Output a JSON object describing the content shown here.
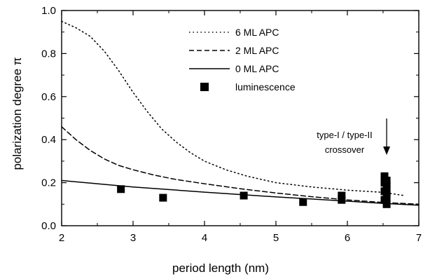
{
  "chart_data": {
    "type": "line",
    "title": "",
    "xlabel": "period length (nm)",
    "ylabel": "polarization degree π",
    "xlim": [
      2,
      7
    ],
    "ylim": [
      0.0,
      1.0
    ],
    "xticks": [
      "2",
      "3",
      "4",
      "5",
      "6",
      "7"
    ],
    "yticks": [
      "0.0",
      "0.2",
      "0.4",
      "0.6",
      "0.8",
      "1.0"
    ],
    "grid": false,
    "legend_position": "top-center",
    "series": [
      {
        "name": "6 ML APC",
        "style": "dotted",
        "x": [
          2.0,
          2.2,
          2.4,
          2.6,
          2.8,
          3.0,
          3.2,
          3.4,
          3.6,
          3.8,
          4.0,
          4.3,
          4.6,
          5.0,
          5.5,
          6.0,
          6.5,
          6.8
        ],
        "y": [
          0.95,
          0.92,
          0.88,
          0.81,
          0.72,
          0.62,
          0.53,
          0.45,
          0.39,
          0.34,
          0.3,
          0.26,
          0.23,
          0.2,
          0.18,
          0.165,
          0.155,
          0.14
        ]
      },
      {
        "name": "2 ML APC",
        "style": "dashed",
        "x": [
          2.0,
          2.2,
          2.4,
          2.6,
          2.8,
          3.0,
          3.3,
          3.6,
          4.0,
          4.5,
          5.0,
          5.5,
          6.0,
          6.5,
          7.0
        ],
        "y": [
          0.46,
          0.4,
          0.35,
          0.31,
          0.28,
          0.26,
          0.235,
          0.215,
          0.195,
          0.172,
          0.152,
          0.135,
          0.12,
          0.108,
          0.1
        ]
      },
      {
        "name": "0 ML APC",
        "style": "solid",
        "x": [
          2.0,
          2.5,
          3.0,
          3.5,
          4.0,
          4.5,
          5.0,
          5.5,
          6.0,
          6.5,
          7.0
        ],
        "y": [
          0.21,
          0.195,
          0.18,
          0.168,
          0.156,
          0.145,
          0.134,
          0.124,
          0.114,
          0.104,
          0.095
        ]
      },
      {
        "name": "luminescence",
        "style": "markers",
        "x": [
          2.83,
          3.42,
          4.55,
          5.38,
          5.92,
          5.92,
          6.52,
          6.52,
          6.52,
          6.52,
          6.55,
          6.55,
          6.55,
          6.55,
          6.55,
          6.55
        ],
        "y": [
          0.17,
          0.13,
          0.14,
          0.11,
          0.12,
          0.14,
          0.23,
          0.2,
          0.16,
          0.12,
          0.21,
          0.19,
          0.17,
          0.15,
          0.13,
          0.1
        ]
      }
    ],
    "annotation": {
      "lines": [
        "type-I / type-II",
        "crossover"
      ],
      "arrow_x": 6.55
    }
  }
}
